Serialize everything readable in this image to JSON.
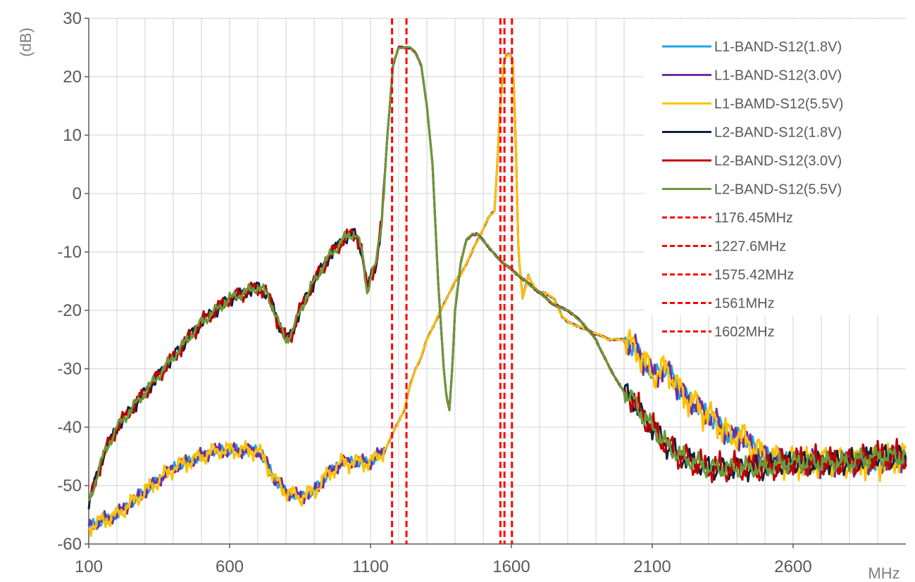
{
  "chart_data": {
    "type": "line",
    "ylabel": "(dB)",
    "xlabel": "MHz",
    "xlim": [
      100,
      3000
    ],
    "ylim": [
      -60,
      30
    ],
    "x_ticks": [
      100,
      600,
      1100,
      1600,
      2100,
      2600
    ],
    "x_tick_labels": [
      "100",
      "600",
      "1100",
      "1600",
      "2100",
      "2600"
    ],
    "y_ticks": [
      -60,
      -50,
      -40,
      -30,
      -20,
      -10,
      0,
      10,
      20,
      30
    ],
    "y_tick_labels": [
      "-60",
      "-50",
      "-40",
      "-30",
      "-20",
      "-10",
      "0",
      "10",
      "20",
      "30"
    ],
    "grid": true,
    "legend_position": "top-right",
    "series": [
      {
        "name": "L1-BAND-S12(1.8V)",
        "color": "#1aa6e6",
        "offset": 0.6,
        "x": [
          100,
          150,
          200,
          250,
          300,
          350,
          400,
          450,
          500,
          550,
          600,
          650,
          700,
          730,
          760,
          800,
          850,
          900,
          950,
          1000,
          1050,
          1100,
          1150,
          1180,
          1200,
          1220,
          1240,
          1260,
          1280,
          1300,
          1320,
          1340,
          1360,
          1380,
          1400,
          1420,
          1440,
          1460,
          1480,
          1500,
          1520,
          1540,
          1550,
          1560,
          1575,
          1590,
          1605,
          1615,
          1625,
          1640,
          1660,
          1680,
          1700,
          1720,
          1750,
          1780,
          1800,
          1850,
          1900,
          1950,
          2000,
          2050,
          2100,
          2150,
          2180,
          2200,
          2250,
          2300,
          2350,
          2380,
          2400,
          2450,
          2500,
          2600,
          2700,
          2800,
          2900,
          3000
        ],
        "y": [
          -57,
          -56,
          -55,
          -53,
          -51,
          -49,
          -47,
          -46,
          -45,
          -44,
          -44,
          -44,
          -44,
          -46,
          -49,
          -51,
          -52,
          -51,
          -48,
          -46,
          -46,
          -46,
          -44,
          -41,
          -39,
          -37,
          -33,
          -30,
          -28,
          -25,
          -23,
          -21,
          -19,
          -17,
          -15,
          -14,
          -12,
          -10,
          -8,
          -6,
          -4,
          -3,
          5,
          15,
          23,
          24,
          23,
          10,
          -10,
          -18,
          -14,
          -16,
          -17,
          -17,
          -18,
          -21,
          -22,
          -23,
          -24,
          -25,
          -25,
          -27,
          -31,
          -30,
          -32,
          -34,
          -36,
          -38,
          -40,
          -42,
          -41,
          -43,
          -45,
          -46,
          -46,
          -46,
          -46,
          -45
        ]
      },
      {
        "name": "L1-BAND-S12(3.0V)",
        "color": "#7030a0",
        "offset": 0.9,
        "x": [
          100,
          150,
          200,
          250,
          300,
          350,
          400,
          450,
          500,
          550,
          600,
          650,
          700,
          730,
          760,
          800,
          850,
          900,
          950,
          1000,
          1050,
          1100,
          1150,
          1180,
          1200,
          1220,
          1240,
          1260,
          1280,
          1300,
          1320,
          1340,
          1360,
          1380,
          1400,
          1420,
          1440,
          1460,
          1480,
          1500,
          1520,
          1540,
          1550,
          1560,
          1575,
          1590,
          1605,
          1615,
          1625,
          1640,
          1660,
          1680,
          1700,
          1720,
          1750,
          1780,
          1800,
          1850,
          1900,
          1950,
          2000,
          2050,
          2100,
          2150,
          2180,
          2200,
          2250,
          2300,
          2350,
          2380,
          2400,
          2450,
          2500,
          2600,
          2700,
          2800,
          2900,
          3000
        ],
        "y": [
          -57,
          -56,
          -55,
          -53,
          -51,
          -49,
          -47,
          -46,
          -45,
          -44,
          -44,
          -44,
          -44,
          -46,
          -49,
          -51,
          -52,
          -51,
          -48,
          -46,
          -46,
          -46,
          -44,
          -41,
          -39,
          -37,
          -33,
          -30,
          -28,
          -25,
          -23,
          -21,
          -19,
          -17,
          -15,
          -14,
          -12,
          -10,
          -8,
          -6,
          -4,
          -3,
          5,
          15,
          23,
          24,
          23,
          10,
          -10,
          -18,
          -14,
          -16,
          -17,
          -17,
          -18,
          -21,
          -22,
          -23,
          -24,
          -25,
          -25,
          -27,
          -31,
          -30,
          -32,
          -34,
          -36,
          -38,
          -40,
          -42,
          -41,
          -43,
          -45,
          -46,
          -46,
          -46,
          -46,
          -45
        ]
      },
      {
        "name": "L1-BAMD-S12(5.5V)",
        "color": "#ffc000",
        "offset": 1.1,
        "x": [
          100,
          150,
          200,
          250,
          300,
          350,
          400,
          450,
          500,
          550,
          600,
          650,
          700,
          730,
          760,
          800,
          850,
          900,
          950,
          1000,
          1050,
          1100,
          1150,
          1180,
          1200,
          1220,
          1240,
          1260,
          1280,
          1300,
          1320,
          1340,
          1360,
          1380,
          1400,
          1420,
          1440,
          1460,
          1480,
          1500,
          1520,
          1540,
          1550,
          1560,
          1575,
          1590,
          1605,
          1615,
          1625,
          1640,
          1660,
          1680,
          1700,
          1720,
          1750,
          1780,
          1800,
          1850,
          1900,
          1950,
          2000,
          2050,
          2100,
          2150,
          2180,
          2200,
          2250,
          2300,
          2350,
          2380,
          2400,
          2450,
          2500,
          2600,
          2700,
          2800,
          2900,
          3000
        ],
        "y": [
          -57,
          -56,
          -55,
          -53,
          -51,
          -49,
          -47,
          -46,
          -45,
          -44,
          -44,
          -44,
          -44,
          -46,
          -49,
          -51,
          -52,
          -51,
          -48,
          -46,
          -46,
          -46,
          -44,
          -41,
          -39,
          -37,
          -33,
          -30,
          -28,
          -25,
          -23,
          -21,
          -19,
          -17,
          -15,
          -14,
          -12,
          -10,
          -8,
          -6,
          -4,
          -3,
          5,
          15,
          23,
          24,
          23,
          10,
          -10,
          -18,
          -14,
          -16,
          -17,
          -17,
          -18,
          -21,
          -22,
          -23,
          -24,
          -25,
          -25,
          -27,
          -31,
          -30,
          -32,
          -34,
          -36,
          -38,
          -40,
          -42,
          -41,
          -43,
          -45,
          -46,
          -46,
          -46,
          -46,
          -45
        ]
      },
      {
        "name": "L2-BAND-S12(1.8V)",
        "color": "#0d2240",
        "offset": 0.8,
        "x": [
          100,
          150,
          200,
          250,
          300,
          350,
          400,
          450,
          500,
          550,
          600,
          650,
          700,
          730,
          750,
          780,
          800,
          820,
          850,
          900,
          950,
          1000,
          1030,
          1050,
          1070,
          1080,
          1090,
          1100,
          1120,
          1140,
          1160,
          1180,
          1200,
          1220,
          1240,
          1260,
          1280,
          1300,
          1320,
          1340,
          1360,
          1370,
          1380,
          1390,
          1400,
          1420,
          1440,
          1460,
          1480,
          1500,
          1550,
          1600,
          1650,
          1700,
          1750,
          1800,
          1850,
          1900,
          1950,
          2000,
          2030,
          2050,
          2100,
          2150,
          2200,
          2250,
          2300,
          2400,
          2500,
          2600,
          2700,
          2800,
          2900,
          3000
        ],
        "y": [
          -53,
          -45,
          -40,
          -37,
          -34,
          -31,
          -28,
          -25,
          -22,
          -20,
          -18,
          -17,
          -16,
          -17,
          -19,
          -23,
          -25,
          -24,
          -20,
          -15,
          -11,
          -8,
          -7,
          -7,
          -10,
          -14,
          -17,
          -14,
          -12,
          -5,
          10,
          22,
          25,
          25,
          25,
          24,
          22,
          15,
          5,
          -15,
          -30,
          -35,
          -37,
          -30,
          -20,
          -12,
          -8,
          -7,
          -7,
          -8,
          -11,
          -13,
          -15,
          -17,
          -19,
          -20,
          -22,
          -25,
          -30,
          -34,
          -35,
          -37,
          -40,
          -43,
          -45,
          -46,
          -47,
          -47,
          -47,
          -46,
          -46,
          -46,
          -45,
          -45
        ]
      },
      {
        "name": "L2-BAND-S12(3.0V)",
        "color": "#c00000",
        "offset": 1.0,
        "x": [
          100,
          150,
          200,
          250,
          300,
          350,
          400,
          450,
          500,
          550,
          600,
          650,
          700,
          730,
          750,
          780,
          800,
          820,
          850,
          900,
          950,
          1000,
          1030,
          1050,
          1070,
          1080,
          1090,
          1100,
          1120,
          1140,
          1160,
          1180,
          1200,
          1220,
          1240,
          1260,
          1280,
          1300,
          1320,
          1340,
          1360,
          1370,
          1380,
          1390,
          1400,
          1420,
          1440,
          1460,
          1480,
          1500,
          1550,
          1600,
          1650,
          1700,
          1750,
          1800,
          1850,
          1900,
          1950,
          2000,
          2030,
          2050,
          2100,
          2150,
          2200,
          2250,
          2300,
          2400,
          2500,
          2600,
          2700,
          2800,
          2900,
          3000
        ],
        "y": [
          -53,
          -45,
          -40,
          -37,
          -34,
          -31,
          -28,
          -25,
          -22,
          -20,
          -18,
          -17,
          -16,
          -17,
          -19,
          -23,
          -25,
          -24,
          -20,
          -15,
          -11,
          -8,
          -7,
          -7,
          -10,
          -14,
          -17,
          -14,
          -12,
          -5,
          10,
          22,
          25,
          25,
          25,
          24,
          22,
          15,
          5,
          -15,
          -30,
          -35,
          -37,
          -30,
          -20,
          -12,
          -8,
          -7,
          -7,
          -8,
          -11,
          -13,
          -15,
          -17,
          -19,
          -20,
          -22,
          -25,
          -30,
          -34,
          -35,
          -37,
          -40,
          -43,
          -45,
          -46,
          -47,
          -47,
          -47,
          -46,
          -46,
          -46,
          -45,
          -45
        ]
      },
      {
        "name": "L2-BAND-S12(5.5V)",
        "color": "#6a9a3a",
        "offset": 0.7,
        "x": [
          100,
          150,
          200,
          250,
          300,
          350,
          400,
          450,
          500,
          550,
          600,
          650,
          700,
          730,
          750,
          780,
          800,
          820,
          850,
          900,
          950,
          1000,
          1030,
          1050,
          1070,
          1080,
          1090,
          1100,
          1120,
          1140,
          1160,
          1180,
          1200,
          1220,
          1240,
          1260,
          1280,
          1300,
          1320,
          1340,
          1360,
          1370,
          1380,
          1390,
          1400,
          1420,
          1440,
          1460,
          1480,
          1500,
          1550,
          1600,
          1650,
          1700,
          1750,
          1800,
          1850,
          1900,
          1950,
          2000,
          2030,
          2050,
          2100,
          2150,
          2200,
          2250,
          2300,
          2400,
          2500,
          2600,
          2700,
          2800,
          2900,
          3000
        ],
        "y": [
          -53,
          -45,
          -40,
          -37,
          -34,
          -31,
          -28,
          -25,
          -22,
          -20,
          -18,
          -17,
          -16,
          -17,
          -19,
          -23,
          -25,
          -24,
          -20,
          -15,
          -11,
          -8,
          -7,
          -7,
          -10,
          -14,
          -17,
          -14,
          -12,
          -5,
          10,
          22,
          25,
          25,
          25,
          24,
          22,
          15,
          5,
          -15,
          -30,
          -35,
          -37,
          -30,
          -20,
          -12,
          -8,
          -7,
          -7,
          -8,
          -11,
          -13,
          -15,
          -17,
          -19,
          -20,
          -22,
          -25,
          -30,
          -34,
          -35,
          -37,
          -40,
          -43,
          -45,
          -46,
          -47,
          -47,
          -47,
          -46,
          -46,
          -46,
          -45,
          -45
        ]
      }
    ],
    "markers": [
      {
        "name": "1176.45MHz",
        "x": 1176.45,
        "color": "#ff0000"
      },
      {
        "name": "1227.6MHz",
        "x": 1227.6,
        "color": "#ff0000"
      },
      {
        "name": "1575.42MHz",
        "x": 1575.42,
        "color": "#ff0000"
      },
      {
        "name": "1561MHz",
        "x": 1561,
        "color": "#ff0000"
      },
      {
        "name": "1602MHz",
        "x": 1602,
        "color": "#ff0000"
      }
    ]
  }
}
